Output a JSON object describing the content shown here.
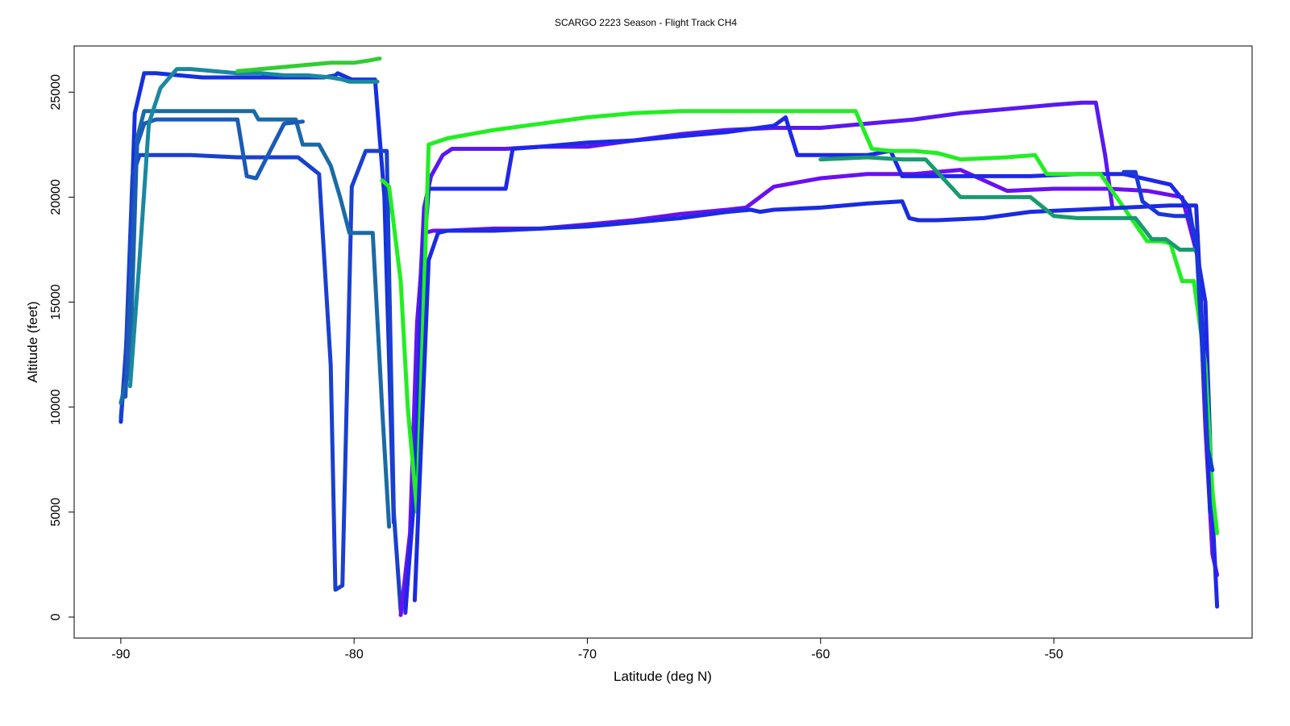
{
  "chart_data": {
    "type": "line",
    "title": "SCARGO 2223 Season - Flight Track CH4",
    "xlabel": "Latitude (deg N)",
    "ylabel": "Altitude (feet)",
    "xlim": [
      -92,
      -41.5
    ],
    "ylim": [
      -1000,
      27200
    ],
    "xticks": [
      -90,
      -80,
      -70,
      -60,
      -50
    ],
    "yticks": [
      0,
      5000,
      10000,
      15000,
      20000,
      25000
    ],
    "legend": "none",
    "grid": false,
    "color_scale": [
      "#0000ff",
      "#7a00ff",
      "#00aa88",
      "#00ee00",
      "#eeff00",
      "#ff6600"
    ],
    "series": [
      {
        "color": "#1530e0",
        "x": [
          -90,
          -89.7,
          -89.4,
          -89.0,
          -88.5,
          -87.5,
          -86.5,
          -85.5,
          -84.5,
          -83.5,
          -82.5,
          -81.8,
          -81.3,
          -80.8,
          -80.7,
          -80.1,
          -79.6,
          -79.1,
          -78.7,
          -78.3
        ],
        "y": [
          9300,
          14000,
          24000,
          25900,
          25900,
          25800,
          25700,
          25700,
          25700,
          25700,
          25700,
          25700,
          25700,
          25800,
          25900,
          25600,
          25600,
          25600,
          20000,
          4500
        ]
      },
      {
        "color": "#1a40d0",
        "x": [
          -90,
          -89.8,
          -89.5,
          -89.2,
          -88.5,
          -87.0,
          -85.0,
          -83.0,
          -82.4,
          -81.5,
          -81.0,
          -80.8,
          -80.5,
          -80.1,
          -79.5,
          -79.0,
          -78.6,
          -78.3,
          -78.0
        ],
        "y": [
          9500,
          12000,
          21000,
          22000,
          22000,
          22000,
          21900,
          21900,
          21900,
          21100,
          12000,
          1300,
          1500,
          20500,
          22200,
          22200,
          22200,
          5000,
          300
        ]
      },
      {
        "color": "#1a6aa8",
        "x": [
          -90,
          -89.6,
          -89.3,
          -89.0,
          -88.6,
          -88.0,
          -86.0,
          -84.3,
          -84.1,
          -83.5,
          -82.5,
          -82.2,
          -81.5,
          -81.0,
          -80.6,
          -80.2,
          -79.6,
          -79.2,
          -78.8,
          -78.5
        ],
        "y": [
          10200,
          12000,
          22800,
          24100,
          24100,
          24100,
          24100,
          24100,
          23700,
          23700,
          23700,
          22500,
          22500,
          21500,
          20000,
          18300,
          18300,
          18300,
          10000,
          4300
        ]
      },
      {
        "color": "#1a5ab8",
        "x": [
          -89.8,
          -89.3,
          -89.0,
          -88.5,
          -88.0,
          -87.0,
          -86.0,
          -85.0,
          -84.6,
          -84.2,
          -83.0,
          -82.2
        ],
        "y": [
          10500,
          22500,
          23500,
          23700,
          23700,
          23700,
          23700,
          23700,
          21000,
          20900,
          23500,
          23600
        ]
      },
      {
        "color": "#1a88a0",
        "x": [
          -89.6,
          -89.2,
          -88.8,
          -88.3,
          -87.6,
          -87.0,
          -86.0,
          -85.0,
          -84.0,
          -83.0,
          -82.0,
          -81.0,
          -80.5,
          -80.2,
          -79.8,
          -79.4,
          -79.0
        ],
        "y": [
          11000,
          17000,
          23500,
          25200,
          26100,
          26100,
          26000,
          25900,
          25900,
          25800,
          25800,
          25700,
          25600,
          25500,
          25500,
          25500,
          25500
        ]
      },
      {
        "color": "#33cc33",
        "x": [
          -85,
          -84,
          -83,
          -82,
          -81,
          -80,
          -79.4,
          -78.9
        ],
        "y": [
          26000,
          26100,
          26200,
          26300,
          26400,
          26400,
          26500,
          26600
        ]
      },
      {
        "color": "#6a10f0",
        "x": [
          -78.0,
          -77.6,
          -77.3,
          -77.0,
          -76.6,
          -76.0,
          -74.0,
          -72.0,
          -70.0,
          -68.0,
          -66.0,
          -64.0,
          -63.2,
          -62.0,
          -61.0,
          -60.0,
          -58.0,
          -56.0,
          -54.0,
          -52.0,
          -50.0,
          -49.0,
          -48.3,
          -47.6,
          -46.0,
          -44.5,
          -43.8,
          -43.5,
          -43.2,
          -43.0
        ],
        "y": [
          100,
          4000,
          14000,
          18300,
          18400,
          18400,
          18500,
          18500,
          18700,
          18900,
          19200,
          19400,
          19500,
          20500,
          20700,
          20900,
          21100,
          21100,
          21300,
          20300,
          20400,
          20400,
          20400,
          20400,
          20300,
          20000,
          17000,
          9000,
          3000,
          2000
        ]
      },
      {
        "color": "#5a18f0",
        "x": [
          -77.8,
          -77.5,
          -77.2,
          -77.0,
          -76.7,
          -76.2,
          -75.8,
          -75.5,
          -74.5,
          -73.5,
          -72.0,
          -70.0,
          -68.0,
          -66.0,
          -64.0,
          -62.0,
          -60.0,
          -58.0,
          -56.0,
          -54.0,
          -52.0,
          -50.0,
          -48.8,
          -48.2,
          -47.8,
          -47.5
        ],
        "y": [
          200,
          5000,
          15000,
          19500,
          21000,
          22000,
          22300,
          22300,
          22300,
          22300,
          22400,
          22400,
          22700,
          23000,
          23200,
          23300,
          23300,
          23500,
          23700,
          24000,
          24200,
          24400,
          24500,
          24500,
          22000,
          19600
        ]
      },
      {
        "color": "#1e28e8",
        "x": [
          -77.8,
          -77.4,
          -77.1,
          -76.8,
          -76.2,
          -75.0,
          -73.5,
          -73.2,
          -72.0,
          -70.0,
          -68.0,
          -66.0,
          -64.0,
          -62.0,
          -61.5,
          -61.0,
          -60.0,
          -58.0,
          -57.0,
          -56.5,
          -55.0,
          -53.0,
          -51.0,
          -49.0,
          -47.0,
          -45.0,
          -44.2,
          -43.5,
          -43.2,
          -43.0
        ],
        "y": [
          300,
          6000,
          16000,
          20400,
          20400,
          20400,
          20400,
          22300,
          22400,
          22600,
          22700,
          22900,
          23100,
          23400,
          23800,
          22000,
          22000,
          22000,
          22200,
          21000,
          21000,
          21000,
          21000,
          21100,
          21100,
          20600,
          19500,
          15000,
          5000,
          500
        ]
      },
      {
        "color": "#22ee22",
        "x": [
          -78.8,
          -78.5,
          -78.0,
          -77.7,
          -77.3,
          -76.8,
          -76.0,
          -74.0,
          -72.0,
          -70.0,
          -68.0,
          -66.0,
          -64.0,
          -62.0,
          -60.0,
          -58.5,
          -57.8,
          -57.0,
          -56.0,
          -55.0,
          -54.0,
          -52.0,
          -50.8,
          -50.3,
          -49.8,
          -49.0,
          -48.0,
          -46.0,
          -45.4,
          -45.0,
          -44.5,
          -44.0,
          -43.5,
          -43.2,
          -43.0
        ],
        "y": [
          20800,
          20500,
          16000,
          10000,
          5000,
          22500,
          22800,
          23200,
          23500,
          23800,
          24000,
          24100,
          24100,
          24100,
          24100,
          24100,
          22300,
          22200,
          22200,
          22100,
          21800,
          21900,
          22000,
          21100,
          21100,
          21100,
          21100,
          17900,
          17900,
          17800,
          16000,
          16000,
          12000,
          6000,
          4000
        ]
      },
      {
        "color": "#1a2ce0",
        "x": [
          -77.4,
          -76.8,
          -76.4,
          -76.0,
          -74.0,
          -72.0,
          -70.0,
          -68.0,
          -66.0,
          -64.0,
          -63.0,
          -62.6,
          -62.0,
          -60.0,
          -58.0,
          -56.5,
          -56.2,
          -55.8,
          -55.0,
          -53.0,
          -51.0,
          -49.0,
          -47.0,
          -45.0,
          -44.0,
          -43.9,
          -43.6,
          -43.3
        ],
        "y": [
          800,
          17000,
          18300,
          18400,
          18400,
          18500,
          18600,
          18800,
          19000,
          19300,
          19400,
          19300,
          19400,
          19500,
          19700,
          19800,
          19000,
          18900,
          18900,
          19000,
          19300,
          19400,
          19500,
          19600,
          19600,
          19600,
          13000,
          5000
        ]
      },
      {
        "color": "#1a9a70",
        "x": [
          -60.0,
          -58.0,
          -56.5,
          -55.5,
          -54.0,
          -53.0,
          -51.0,
          -50.0,
          -49.0,
          -48.0,
          -47.0,
          -46.5,
          -45.8,
          -45.2,
          -44.6,
          -44.3,
          -44.0
        ],
        "y": [
          21800,
          21900,
          21800,
          21800,
          20000,
          20000,
          20000,
          19100,
          19000,
          19000,
          19000,
          19000,
          18000,
          18000,
          17500,
          17500,
          17500
        ]
      },
      {
        "color": "#1838d8",
        "x": [
          -47.0,
          -46.5,
          -46.2,
          -45.5,
          -44.8,
          -44.2,
          -43.9,
          -43.6,
          -43.4,
          -43.2
        ],
        "y": [
          21200,
          21200,
          19800,
          19200,
          19100,
          19100,
          18000,
          12000,
          8000,
          7000
        ]
      }
    ]
  }
}
